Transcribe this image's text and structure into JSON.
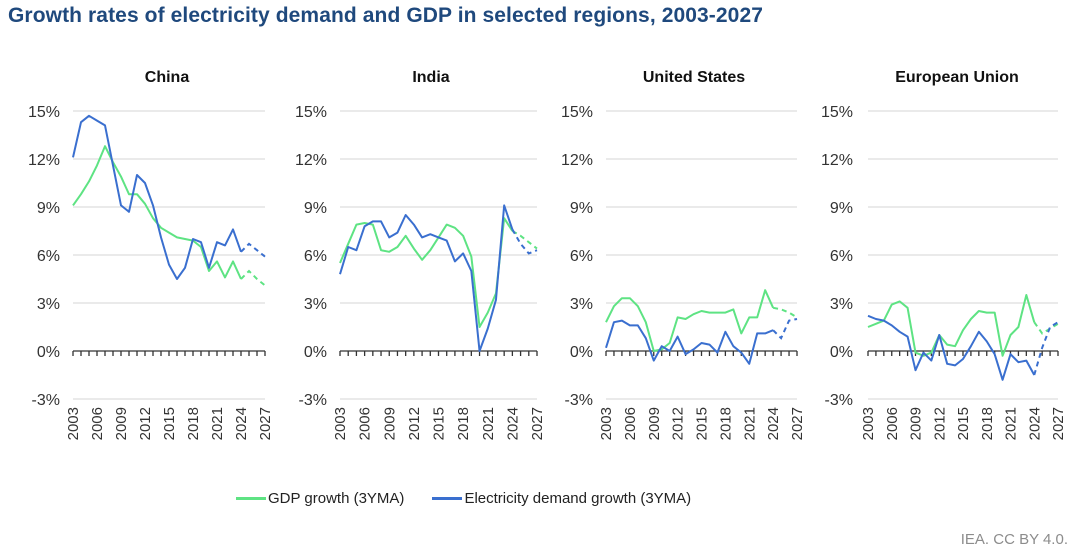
{
  "title": "Growth rates of electricity demand and GDP in selected regions, 2003-2027",
  "source": "IEA. CC BY 4.0.",
  "colors": {
    "gdp": "#5ee383",
    "electricity": "#3a6fcf",
    "grid": "#e3e3e3",
    "axis": "#333333",
    "title": "#1f497d"
  },
  "legend": [
    {
      "label": "GDP growth (3YMA)",
      "series": "gdp"
    },
    {
      "label": "Electricity demand growth (3YMA)",
      "series": "electricity"
    }
  ],
  "chart_data": [
    {
      "type": "line",
      "title": "China",
      "x": [
        2003,
        2004,
        2005,
        2006,
        2007,
        2008,
        2009,
        2010,
        2011,
        2012,
        2013,
        2014,
        2015,
        2016,
        2017,
        2018,
        2019,
        2020,
        2021,
        2022,
        2023,
        2024,
        2025,
        2026,
        2027
      ],
      "xticks": [
        "2003",
        "2006",
        "2009",
        "2012",
        "2015",
        "2018",
        "2021",
        "2024",
        "2027"
      ],
      "yticks": [
        "15%",
        "12%",
        "9%",
        "6%",
        "3%",
        "0%",
        "-3%"
      ],
      "ylim": [
        -3,
        15
      ],
      "forecast_from": 2024,
      "series": [
        {
          "name": "GDP growth (3YMA)",
          "key": "gdp",
          "values": [
            9.1,
            9.8,
            10.6,
            11.6,
            12.8,
            11.8,
            10.9,
            9.8,
            9.8,
            9.2,
            8.3,
            7.7,
            7.4,
            7.1,
            7.0,
            6.9,
            6.5,
            5.0,
            5.6,
            4.6,
            5.6,
            4.5,
            5.0,
            4.5,
            4.1
          ]
        },
        {
          "name": "Electricity demand growth (3YMA)",
          "key": "electricity",
          "values": [
            12.1,
            14.3,
            14.7,
            14.4,
            14.1,
            11.6,
            9.1,
            8.7,
            11.0,
            10.5,
            9.1,
            7.1,
            5.4,
            4.5,
            5.2,
            7.0,
            6.8,
            5.2,
            6.8,
            6.6,
            7.6,
            6.2,
            6.7,
            6.3,
            5.9
          ]
        }
      ]
    },
    {
      "type": "line",
      "title": "India",
      "x": [
        2003,
        2004,
        2005,
        2006,
        2007,
        2008,
        2009,
        2010,
        2011,
        2012,
        2013,
        2014,
        2015,
        2016,
        2017,
        2018,
        2019,
        2020,
        2021,
        2022,
        2023,
        2024,
        2025,
        2026,
        2027
      ],
      "xticks": [
        "2003",
        "2006",
        "2009",
        "2012",
        "2015",
        "2018",
        "2021",
        "2024",
        "2027"
      ],
      "yticks": [
        "15%",
        "12%",
        "9%",
        "6%",
        "3%",
        "0%",
        "-3%"
      ],
      "ylim": [
        -3,
        15
      ],
      "forecast_from": 2024,
      "series": [
        {
          "name": "GDP growth (3YMA)",
          "key": "gdp",
          "values": [
            5.5,
            6.7,
            7.9,
            8.0,
            7.9,
            6.3,
            6.2,
            6.5,
            7.2,
            6.4,
            5.7,
            6.3,
            7.1,
            7.9,
            7.7,
            7.2,
            5.9,
            1.5,
            2.4,
            3.6,
            8.3,
            7.5,
            7.2,
            6.8,
            6.4
          ]
        },
        {
          "name": "Electricity demand growth (3YMA)",
          "key": "electricity",
          "values": [
            4.8,
            6.5,
            6.3,
            7.8,
            8.1,
            8.1,
            7.1,
            7.4,
            8.5,
            7.9,
            7.1,
            7.3,
            7.1,
            6.9,
            5.6,
            6.1,
            5.0,
            0.0,
            1.4,
            3.2,
            9.1,
            7.6,
            6.7,
            6.1,
            6.3
          ]
        }
      ]
    },
    {
      "type": "line",
      "title": "United States",
      "x": [
        2003,
        2004,
        2005,
        2006,
        2007,
        2008,
        2009,
        2010,
        2011,
        2012,
        2013,
        2014,
        2015,
        2016,
        2017,
        2018,
        2019,
        2020,
        2021,
        2022,
        2023,
        2024,
        2025,
        2026,
        2027
      ],
      "xticks": [
        "2003",
        "2006",
        "2009",
        "2012",
        "2015",
        "2018",
        "2021",
        "2024",
        "2027"
      ],
      "yticks": [
        "15%",
        "12%",
        "9%",
        "6%",
        "3%",
        "0%",
        "-3%"
      ],
      "ylim": [
        -3,
        15
      ],
      "forecast_from": 2024,
      "series": [
        {
          "name": "GDP growth (3YMA)",
          "key": "gdp",
          "values": [
            1.8,
            2.8,
            3.3,
            3.3,
            2.8,
            1.8,
            0.0,
            0.1,
            0.5,
            2.1,
            2.0,
            2.3,
            2.5,
            2.4,
            2.4,
            2.4,
            2.6,
            1.1,
            2.1,
            2.1,
            3.8,
            2.7,
            2.6,
            2.4,
            2.1
          ]
        },
        {
          "name": "Electricity demand growth (3YMA)",
          "key": "electricity",
          "values": [
            0.2,
            1.8,
            1.9,
            1.6,
            1.6,
            0.8,
            -0.6,
            0.3,
            0.0,
            0.9,
            -0.2,
            0.1,
            0.5,
            0.4,
            -0.1,
            1.2,
            0.3,
            -0.1,
            -0.8,
            1.1,
            1.1,
            1.3,
            0.8,
            1.9,
            2.0
          ]
        }
      ]
    },
    {
      "type": "line",
      "title": "European Union",
      "x": [
        2003,
        2004,
        2005,
        2006,
        2007,
        2008,
        2009,
        2010,
        2011,
        2012,
        2013,
        2014,
        2015,
        2016,
        2017,
        2018,
        2019,
        2020,
        2021,
        2022,
        2023,
        2024,
        2025,
        2026,
        2027
      ],
      "xticks": [
        "2003",
        "2006",
        "2009",
        "2012",
        "2015",
        "2018",
        "2021",
        "2024",
        "2027"
      ],
      "yticks": [
        "15%",
        "12%",
        "9%",
        "6%",
        "3%",
        "0%",
        "-3%"
      ],
      "ylim": [
        -3,
        15
      ],
      "forecast_from": 2024,
      "series": [
        {
          "name": "GDP growth (3YMA)",
          "key": "gdp",
          "values": [
            1.5,
            1.7,
            1.9,
            2.9,
            3.1,
            2.7,
            -0.1,
            -0.3,
            -0.1,
            1.0,
            0.4,
            0.3,
            1.3,
            2.0,
            2.5,
            2.4,
            2.4,
            -0.3,
            1.0,
            1.5,
            3.5,
            1.8,
            1.1,
            1.4,
            1.7
          ]
        },
        {
          "name": "Electricity demand growth (3YMA)",
          "key": "electricity",
          "values": [
            2.2,
            2.0,
            1.9,
            1.6,
            1.2,
            0.9,
            -1.2,
            -0.1,
            -0.6,
            1.0,
            -0.8,
            -0.9,
            -0.5,
            0.3,
            1.2,
            0.6,
            -0.2,
            -1.8,
            -0.2,
            -0.7,
            -0.6,
            -1.5,
            0.2,
            1.5,
            1.8
          ]
        }
      ]
    }
  ]
}
